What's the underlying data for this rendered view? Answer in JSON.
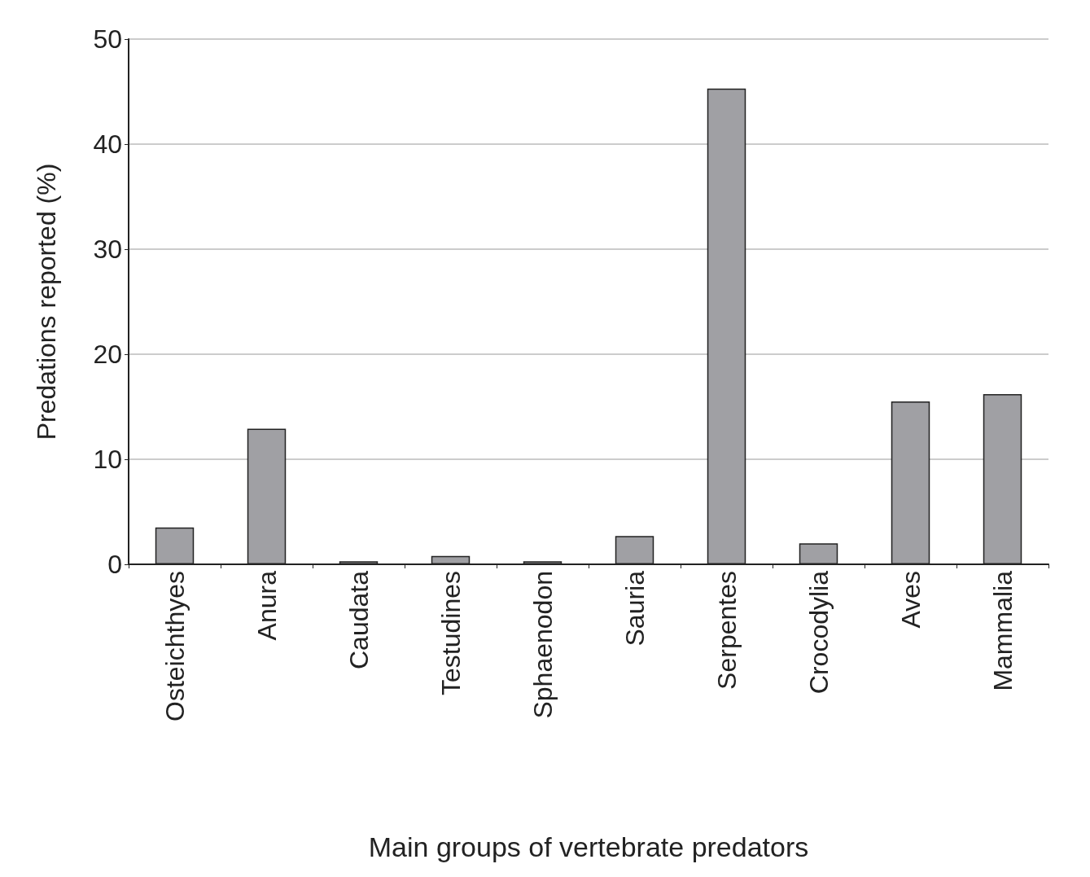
{
  "chart_data": {
    "type": "bar",
    "xlabel": "Main groups of vertebrate predators",
    "ylabel": "Predations reported (%)",
    "categories": [
      "Osteichthyes",
      "Anura",
      "Caudata",
      "Testudines",
      "Sphaenodon",
      "Sauria",
      "Serpentes",
      "Crocodylia",
      "Aves",
      "Mammalia"
    ],
    "values": [
      3.5,
      12.9,
      0.3,
      0.8,
      0.3,
      2.7,
      45.3,
      2.0,
      15.5,
      16.2
    ],
    "color": "#a0a0a4",
    "ylim": [
      0,
      50
    ],
    "yticks": [
      0,
      10,
      20,
      30,
      40,
      50
    ],
    "grid": true
  }
}
